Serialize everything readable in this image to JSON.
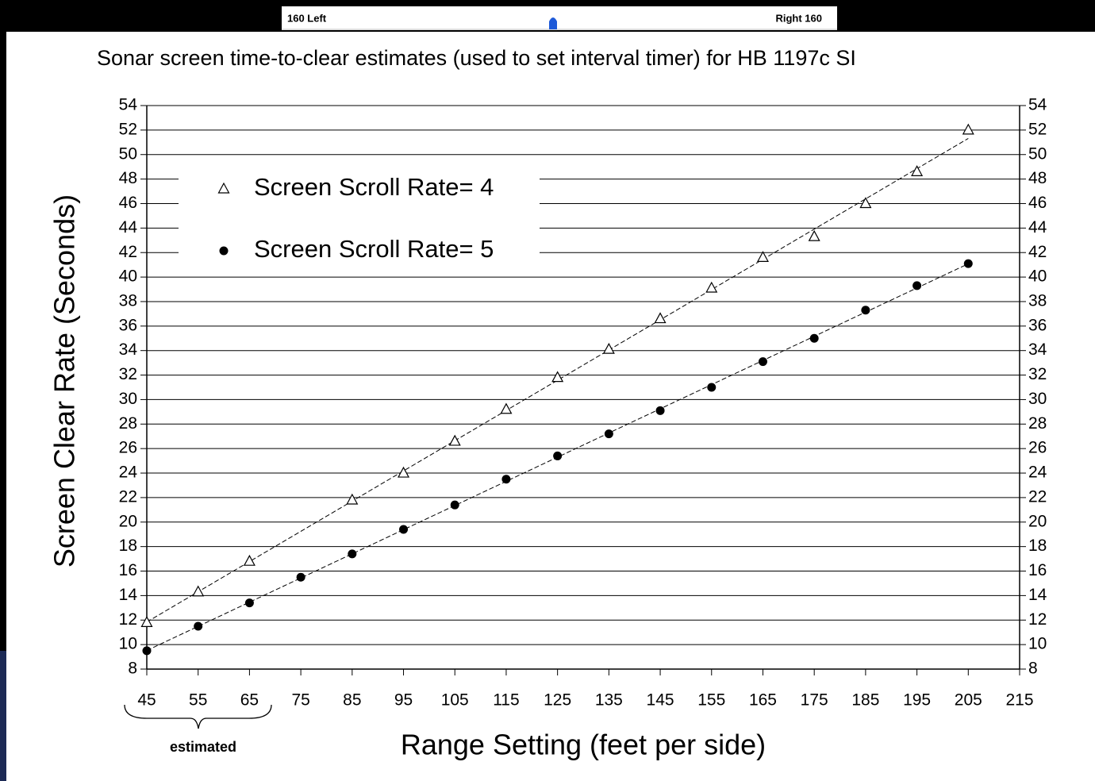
{
  "header": {
    "left": "160 Left",
    "right": "Right 160"
  },
  "chart_data": {
    "type": "scatter",
    "title": "Sonar screen time-to-clear estimates (used to set interval timer) for HB 1197c SI",
    "x_label": "Range Setting (feet per side)",
    "y_label": "Screen Clear Rate (Seconds)",
    "annotation": "estimated",
    "x": [
      45,
      55,
      65,
      75,
      85,
      95,
      105,
      115,
      125,
      135,
      145,
      155,
      165,
      175,
      185,
      195,
      205
    ],
    "series": [
      {
        "name": "Screen Scroll Rate= 4",
        "marker": "triangle",
        "color": "#000000",
        "values": [
          11.8,
          14.3,
          16.8,
          null,
          21.8,
          24.0,
          26.6,
          29.2,
          31.8,
          34.1,
          36.6,
          39.1,
          41.6,
          43.3,
          46.0,
          48.6,
          52.0
        ]
      },
      {
        "name": "Screen Scroll Rate= 5",
        "marker": "circle",
        "color": "#000000",
        "values": [
          9.5,
          11.5,
          13.4,
          15.5,
          17.4,
          19.4,
          21.4,
          23.5,
          25.4,
          27.2,
          29.1,
          31.0,
          33.1,
          35.0,
          37.3,
          39.3,
          41.1
        ]
      }
    ],
    "xlim": [
      45,
      215
    ],
    "xticks": [
      45,
      55,
      65,
      75,
      85,
      95,
      105,
      115,
      125,
      135,
      145,
      155,
      165,
      175,
      185,
      195,
      205,
      215
    ],
    "ylim": [
      8,
      54
    ],
    "yticks": [
      8,
      10,
      12,
      14,
      16,
      18,
      20,
      22,
      24,
      26,
      28,
      30,
      32,
      34,
      36,
      38,
      40,
      42,
      44,
      46,
      48,
      50,
      52,
      54
    ],
    "y2lim": [
      8,
      54
    ],
    "y2ticks": [
      8,
      10,
      12,
      14,
      16,
      18,
      20,
      22,
      24,
      26,
      28,
      30,
      32,
      34,
      36,
      38,
      40,
      42,
      44,
      46,
      48,
      50,
      52,
      54
    ],
    "grid": true,
    "trendline": true,
    "legend": "upper left"
  }
}
